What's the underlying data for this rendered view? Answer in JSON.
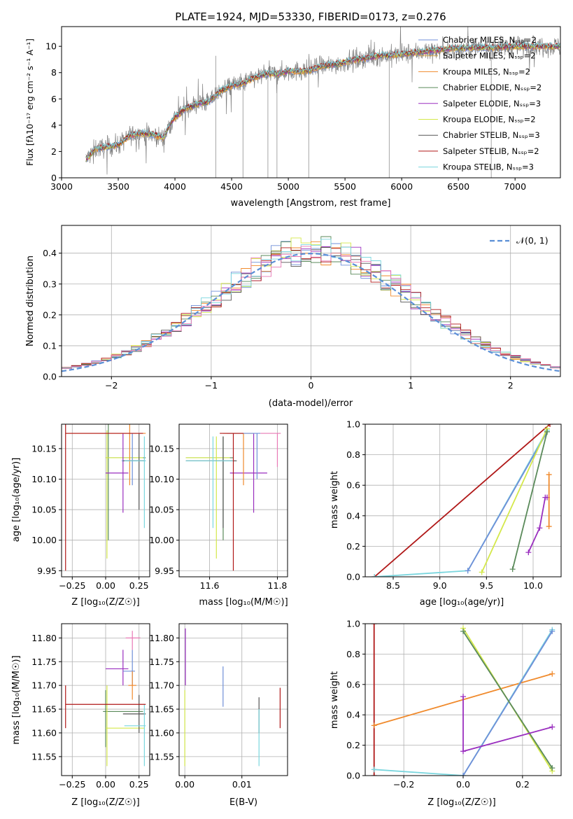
{
  "colors": {
    "chabrier_miles": "#6f8fd8",
    "salpeter_miles": "#d9a84a",
    "kroupa_miles": "#f08a2c",
    "chabrier_elodie": "#5a8a5a",
    "salpeter_elodie": "#9a2fbf",
    "kroupa_elodie": "#d4e84a",
    "chabrier_stelib": "#555555",
    "salpeter_stelib": "#b01818",
    "kroupa_stelib": "#7ad6de",
    "pink": "#e879b5",
    "normal": "#5b8fd6",
    "grid": "#b0b0b0"
  },
  "chart_data": [
    {
      "id": "spectrum",
      "type": "line",
      "title": "PLATE=1924, MJD=53330, FIBERID=0173, z=0.276",
      "xlabel": "wavelength [Angstrom, rest frame]",
      "ylabel": "Flux [fλ10⁻¹⁷ erg cm⁻² s⁻¹ A⁻¹]",
      "xlim": [
        3000,
        7400
      ],
      "ylim": [
        0,
        11.5
      ],
      "xticks": [
        3000,
        3500,
        4000,
        4500,
        5000,
        5500,
        6000,
        6500,
        7000
      ],
      "yticks": [
        0,
        2,
        4,
        6,
        8,
        10
      ],
      "grid": false,
      "legend_position": "right",
      "legend": [
        "Chabrier MILES, Nₛₛₚ=2",
        "Salpeter MILES, Nₛₛₚ=2",
        "Kroupa MILES, Nₛₛₚ=2",
        "Chabrier ELODIE, Nₛₛₚ=2",
        "Salpeter ELODIE, Nₛₛₚ=3",
        "Kroupa ELODIE, Nₛₛₚ=2",
        "Chabrier STELIB, Nₛₛₚ=3",
        "Salpeter STELIB, Nₛₛₚ=2",
        "Kroupa STELIB, Nₛₛₚ=3"
      ],
      "data_range": [
        3215,
        7400
      ],
      "model_shape": [
        [
          3215,
          1.4
        ],
        [
          3300,
          2.2
        ],
        [
          3500,
          2.5
        ],
        [
          3600,
          3.2
        ],
        [
          3700,
          3.4
        ],
        [
          3800,
          3.3
        ],
        [
          3900,
          3.0
        ],
        [
          3950,
          4.0
        ],
        [
          4000,
          4.6
        ],
        [
          4100,
          5.3
        ],
        [
          4200,
          5.6
        ],
        [
          4300,
          5.8
        ],
        [
          4400,
          6.6
        ],
        [
          4500,
          7.0
        ],
        [
          4600,
          7.2
        ],
        [
          4700,
          7.6
        ],
        [
          4800,
          7.9
        ],
        [
          4900,
          7.9
        ],
        [
          5000,
          8.1
        ],
        [
          5100,
          8.1
        ],
        [
          5200,
          8.2
        ],
        [
          5300,
          8.5
        ],
        [
          5400,
          8.6
        ],
        [
          5500,
          8.8
        ],
        [
          5600,
          9.0
        ],
        [
          5700,
          9.1
        ],
        [
          5800,
          9.3
        ],
        [
          5900,
          9.3
        ],
        [
          6000,
          9.4
        ],
        [
          6200,
          9.6
        ],
        [
          6400,
          9.8
        ],
        [
          6600,
          9.9
        ],
        [
          6800,
          9.9
        ],
        [
          7000,
          10.0
        ],
        [
          7200,
          10.0
        ],
        [
          7400,
          10.0
        ]
      ]
    },
    {
      "id": "residuals",
      "type": "step",
      "xlabel": "(data-model)/error",
      "ylabel": "Normed distribution",
      "xlim": [
        -2.5,
        2.5
      ],
      "ylim": [
        0,
        0.49
      ],
      "xticks": [
        -2,
        -1,
        0,
        1,
        2
      ],
      "yticks": [
        0.0,
        0.1,
        0.2,
        0.3,
        0.4
      ],
      "grid": true,
      "legend_position": "top-right",
      "normal_label": "𝒩(0, 1)",
      "bin_width": 0.1
    },
    {
      "id": "age_Z",
      "type": "errorbar",
      "xlabel": "Z [log₁₀(Z/Z☉)]",
      "ylabel": "age  [log₁₀(age/yr)]",
      "xlim": [
        -0.33,
        0.33
      ],
      "ylim": [
        9.94,
        10.19
      ],
      "xticks": [
        -0.25,
        0.0,
        0.25
      ],
      "yticks": [
        9.95,
        10.0,
        10.05,
        10.1,
        10.15
      ],
      "grid": true,
      "points": [
        {
          "x": 0.02,
          "y": 10.135,
          "xlo": 0.0,
          "xhi": 0.3,
          "ylo": 10.0,
          "yhi": 10.19,
          "c": "chabrier_elodie"
        },
        {
          "x": 0.01,
          "y": 10.135,
          "xlo": 0.0,
          "xhi": 0.28,
          "ylo": 9.97,
          "yhi": 10.18,
          "c": "kroupa_elodie"
        },
        {
          "x": 0.13,
          "y": 10.11,
          "xlo": 0.0,
          "xhi": 0.17,
          "ylo": 10.045,
          "yhi": 10.175,
          "c": "salpeter_elodie"
        },
        {
          "x": 0.18,
          "y": 10.175,
          "xlo": -0.3,
          "xhi": 0.3,
          "ylo": 10.09,
          "yhi": 10.19,
          "c": "kroupa_miles"
        },
        {
          "x": 0.2,
          "y": 10.13,
          "xlo": 0.12,
          "xhi": 0.3,
          "ylo": 10.09,
          "yhi": 10.175,
          "c": "chabrier_miles"
        },
        {
          "x": 0.25,
          "y": 10.13,
          "xlo": 0.13,
          "xhi": 0.29,
          "ylo": 10.05,
          "yhi": 10.175,
          "c": "chabrier_stelib"
        },
        {
          "x": 0.29,
          "y": 10.13,
          "xlo": 0.14,
          "xhi": 0.3,
          "ylo": 10.02,
          "yhi": 10.17,
          "c": "kroupa_stelib"
        },
        {
          "x": -0.3,
          "y": 10.175,
          "xlo": -0.3,
          "xhi": 0.28,
          "ylo": 9.95,
          "yhi": 10.19,
          "c": "salpeter_stelib"
        }
      ]
    },
    {
      "id": "age_mass",
      "type": "errorbar",
      "xlabel": "mass [log₁₀(M/M☉)]",
      "ylabel": "",
      "xlim": [
        11.51,
        11.83
      ],
      "ylim": [
        9.94,
        10.19
      ],
      "xticks": [
        11.6,
        11.8
      ],
      "yticks": [
        9.95,
        10.0,
        10.05,
        10.1,
        10.15
      ],
      "grid": true,
      "points": [
        {
          "x": 11.64,
          "y": 10.135,
          "xlo": 11.53,
          "xhi": 11.67,
          "ylo": 10.0,
          "yhi": 10.17,
          "c": "chabrier_elodie"
        },
        {
          "x": 11.62,
          "y": 10.135,
          "xlo": 11.53,
          "xhi": 11.66,
          "ylo": 9.97,
          "yhi": 10.17,
          "c": "kroupa_elodie"
        },
        {
          "x": 11.73,
          "y": 10.11,
          "xlo": 11.66,
          "xhi": 11.77,
          "ylo": 10.045,
          "yhi": 10.175,
          "c": "salpeter_elodie"
        },
        {
          "x": 11.7,
          "y": 10.175,
          "xlo": 11.64,
          "xhi": 11.73,
          "ylo": 10.09,
          "yhi": 10.175,
          "c": "kroupa_miles"
        },
        {
          "x": 11.74,
          "y": 10.175,
          "xlo": 11.65,
          "xhi": 11.75,
          "ylo": 10.1,
          "yhi": 10.175,
          "c": "chabrier_miles"
        },
        {
          "x": 11.64,
          "y": 10.13,
          "xlo": 11.53,
          "xhi": 11.68,
          "ylo": 10.02,
          "yhi": 10.17,
          "c": "chabrier_stelib"
        },
        {
          "x": 11.61,
          "y": 10.13,
          "xlo": 11.53,
          "xhi": 11.67,
          "ylo": 10.02,
          "yhi": 10.17,
          "c": "kroupa_stelib"
        },
        {
          "x": 11.67,
          "y": 10.175,
          "xlo": 11.63,
          "xhi": 11.7,
          "ylo": 9.95,
          "yhi": 10.175,
          "c": "salpeter_stelib"
        },
        {
          "x": 11.8,
          "y": 10.175,
          "xlo": 11.75,
          "xhi": 11.81,
          "ylo": 10.12,
          "yhi": 10.175,
          "c": "pink"
        }
      ]
    },
    {
      "id": "weight_age",
      "type": "line",
      "xlabel": "age  [log₁₀(age/yr)]",
      "ylabel": "mass weight",
      "xlim": [
        8.2,
        10.3
      ],
      "ylim": [
        0,
        1
      ],
      "xticks": [
        8.5,
        9.0,
        9.5,
        10.0
      ],
      "yticks": [
        0.0,
        0.2,
        0.4,
        0.6,
        0.8,
        1.0
      ],
      "grid": true,
      "series": [
        {
          "c": "salpeter_stelib",
          "x": [
            8.3,
            10.18
          ],
          "y": [
            0.0,
            1.0
          ]
        },
        {
          "c": "kroupa_stelib",
          "x": [
            8.3,
            9.3,
            10.15
          ],
          "y": [
            0.0,
            0.04,
            0.96
          ]
        },
        {
          "c": "chabrier_miles",
          "x": [
            9.3,
            10.15
          ],
          "y": [
            0.04,
            0.95
          ]
        },
        {
          "c": "kroupa_elodie",
          "x": [
            9.45,
            10.15
          ],
          "y": [
            0.03,
            0.97
          ]
        },
        {
          "c": "chabrier_elodie",
          "x": [
            9.78,
            10.15
          ],
          "y": [
            0.05,
            0.95
          ]
        },
        {
          "c": "salpeter_elodie",
          "x": [
            9.95,
            10.07,
            10.13,
            10.15
          ],
          "y": [
            0.16,
            0.32,
            0.52,
            0.52
          ]
        },
        {
          "c": "kroupa_miles",
          "x": [
            10.17,
            10.17
          ],
          "y": [
            0.33,
            0.67
          ]
        }
      ]
    },
    {
      "id": "mass_Z",
      "type": "errorbar",
      "xlabel": "Z [log₁₀(Z/Z☉)]",
      "ylabel": "mass [log₁₀(M/M☉)]",
      "xlim": [
        -0.33,
        0.33
      ],
      "ylim": [
        11.51,
        11.83
      ],
      "xticks": [
        -0.25,
        0.0,
        0.25
      ],
      "yticks": [
        11.55,
        11.6,
        11.65,
        11.7,
        11.75,
        11.8
      ],
      "grid": true,
      "points": [
        {
          "x": 0.0,
          "y": 11.645,
          "xlo": -0.02,
          "xhi": 0.28,
          "ylo": 11.57,
          "yhi": 11.69,
          "c": "chabrier_elodie"
        },
        {
          "x": 0.01,
          "y": 11.61,
          "xlo": 0.0,
          "xhi": 0.29,
          "ylo": 11.53,
          "yhi": 11.7,
          "c": "kroupa_elodie"
        },
        {
          "x": 0.13,
          "y": 11.735,
          "xlo": -0.0,
          "xhi": 0.17,
          "ylo": 11.7,
          "yhi": 11.775,
          "c": "salpeter_elodie"
        },
        {
          "x": 0.2,
          "y": 11.73,
          "xlo": 0.13,
          "xhi": 0.22,
          "ylo": 11.7,
          "yhi": 11.775,
          "c": "chabrier_miles"
        },
        {
          "x": 0.2,
          "y": 11.7,
          "xlo": 0.17,
          "xhi": 0.23,
          "ylo": 11.67,
          "yhi": 11.73,
          "c": "kroupa_miles"
        },
        {
          "x": 0.2,
          "y": 11.8,
          "xlo": 0.15,
          "xhi": 0.26,
          "ylo": 11.775,
          "yhi": 11.815,
          "c": "pink"
        },
        {
          "x": 0.25,
          "y": 11.64,
          "xlo": 0.13,
          "xhi": 0.3,
          "ylo": 11.6,
          "yhi": 11.68,
          "c": "chabrier_stelib"
        },
        {
          "x": 0.29,
          "y": 11.615,
          "xlo": 0.14,
          "xhi": 0.3,
          "ylo": 11.53,
          "yhi": 11.66,
          "c": "kroupa_stelib"
        },
        {
          "x": -0.3,
          "y": 11.66,
          "xlo": -0.3,
          "xhi": 0.3,
          "ylo": 11.61,
          "yhi": 11.7,
          "c": "salpeter_stelib"
        }
      ]
    },
    {
      "id": "mass_ebv",
      "type": "errorbar",
      "xlabel": "E(B-V)",
      "ylabel": "",
      "xlim": [
        -0.001,
        0.018
      ],
      "ylim": [
        11.51,
        11.83
      ],
      "xticks": [
        0.0,
        0.01
      ],
      "yticks": [
        11.55,
        11.6,
        11.65,
        11.7,
        11.75,
        11.8
      ],
      "grid": true,
      "points": [
        {
          "x": 0.0001,
          "y": 11.76,
          "ylo": 11.7,
          "yhi": 11.82,
          "c": "salpeter_elodie"
        },
        {
          "x": 0.0,
          "y": 11.6,
          "ylo": 11.53,
          "yhi": 11.69,
          "c": "kroupa_elodie"
        },
        {
          "x": 0.0067,
          "y": 11.7,
          "ylo": 11.655,
          "yhi": 11.74,
          "c": "chabrier_miles"
        },
        {
          "x": 0.013,
          "y": 11.645,
          "ylo": 11.6,
          "yhi": 11.675,
          "c": "chabrier_stelib"
        },
        {
          "x": 0.013,
          "y": 11.6,
          "ylo": 11.53,
          "yhi": 11.65,
          "c": "kroupa_stelib"
        },
        {
          "x": 0.0167,
          "y": 11.655,
          "ylo": 11.61,
          "yhi": 11.695,
          "c": "salpeter_stelib"
        }
      ]
    },
    {
      "id": "weight_Z",
      "type": "line",
      "xlabel": "Z [log₁₀(Z/Z☉)]",
      "ylabel": "mass weight",
      "xlim": [
        -0.33,
        0.33
      ],
      "ylim": [
        0,
        1
      ],
      "xticks": [
        -0.2,
        0.0,
        0.2
      ],
      "yticks": [
        0.0,
        0.2,
        0.4,
        0.6,
        0.8,
        1.0
      ],
      "grid": true,
      "series": [
        {
          "c": "salpeter_stelib",
          "x": [
            -0.3,
            -0.3
          ],
          "y": [
            0.0,
            1.0
          ]
        },
        {
          "c": "kroupa_miles",
          "x": [
            -0.3,
            0.3
          ],
          "y": [
            0.33,
            0.67
          ]
        },
        {
          "c": "kroupa_stelib",
          "x": [
            -0.3,
            0.0,
            0.3
          ],
          "y": [
            0.04,
            0.0,
            0.96
          ]
        },
        {
          "c": "chabrier_miles",
          "x": [
            0.0,
            0.3
          ],
          "y": [
            0.0,
            0.95
          ]
        },
        {
          "c": "kroupa_elodie",
          "x": [
            0.0,
            0.3
          ],
          "y": [
            0.97,
            0.03
          ]
        },
        {
          "c": "chabrier_elodie",
          "x": [
            0.0,
            0.3
          ],
          "y": [
            0.95,
            0.05
          ]
        },
        {
          "c": "salpeter_elodie",
          "x": [
            0.0,
            0.0,
            0.3
          ],
          "y": [
            0.52,
            0.16,
            0.32
          ]
        }
      ]
    }
  ]
}
